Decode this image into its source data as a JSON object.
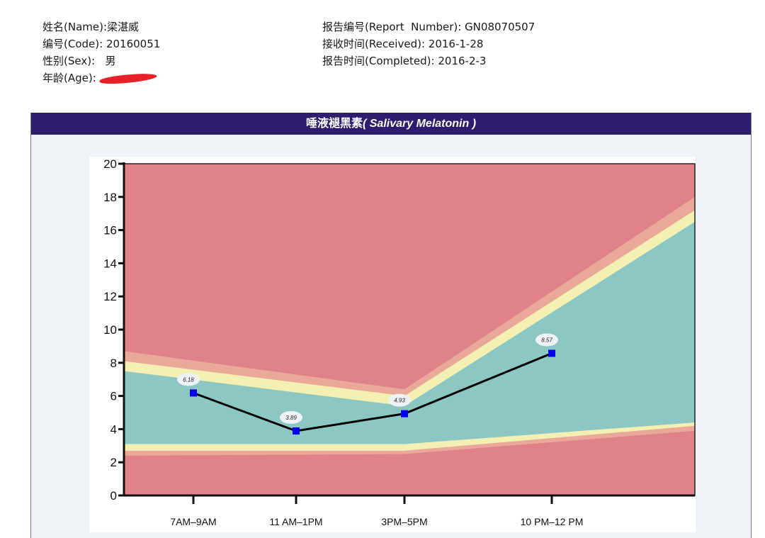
{
  "patient_info": {
    "name_label": "姓名(Name):",
    "name_value": "梁湛威",
    "code_label": "编号(Code):",
    "code_value": "20160051",
    "sex_label": "性别(Sex):",
    "sex_value": "男",
    "age_label": "年龄(Age):",
    "age_value": ""
  },
  "report_info": {
    "report_number_label": "报告编号(Report  Number):",
    "report_number_value": "GN08070507",
    "received_label": "接收时间(Received):",
    "received_value": "2016-1-28",
    "completed_label": "报告时间(Completed):",
    "completed_value": "2016-2-3"
  },
  "panel": {
    "title_cn": "唾液褪黑素",
    "title_en": "( Salivary Melatonin )",
    "header_color": "#2e1c6e"
  },
  "chart_data": {
    "type": "line",
    "title": "唾液褪黑素 ( Salivary Melatonin )",
    "xlabel": "",
    "ylabel": "",
    "categories": [
      "7AM-9AM",
      "11 AM-1PM",
      "3PM-5PM",
      "10 PM-12 PM"
    ],
    "series": [
      {
        "name": "Salivary Melatonin",
        "values": [
          6.18,
          3.89,
          4.93,
          8.57
        ],
        "color": "#000000",
        "marker_color": "#0000ee"
      }
    ],
    "data_labels": [
      "6.18",
      "3.89",
      "4.93",
      "8.57"
    ],
    "ylim": [
      0,
      20
    ],
    "yticks": [
      0,
      2,
      4,
      6,
      8,
      10,
      12,
      14,
      16,
      18,
      20
    ],
    "grid": false,
    "legend": "none",
    "reference_bands": {
      "description": "Background zones from top to bottom: red (high), salmon, yellow, teal (normal), yellow, salmon, red (low)",
      "x_positions": [
        "left edge",
        "3PM-5PM",
        "right edge"
      ],
      "normal_upper": [
        7.5,
        5.4,
        16.5
      ],
      "yellow_upper": [
        8.1,
        6.0,
        17.2
      ],
      "salmon_upper": [
        8.7,
        6.4,
        18.0
      ],
      "normal_lower": [
        3.1,
        3.1,
        4.4
      ],
      "yellow_lower": [
        2.7,
        2.7,
        4.2
      ],
      "salmon_lower": [
        2.4,
        2.5,
        3.9
      ]
    },
    "colors": {
      "red": "#e0828a",
      "salmon": "#eaa89a",
      "yellow": "#f4f0b4",
      "teal": "#8dc7c4"
    }
  }
}
